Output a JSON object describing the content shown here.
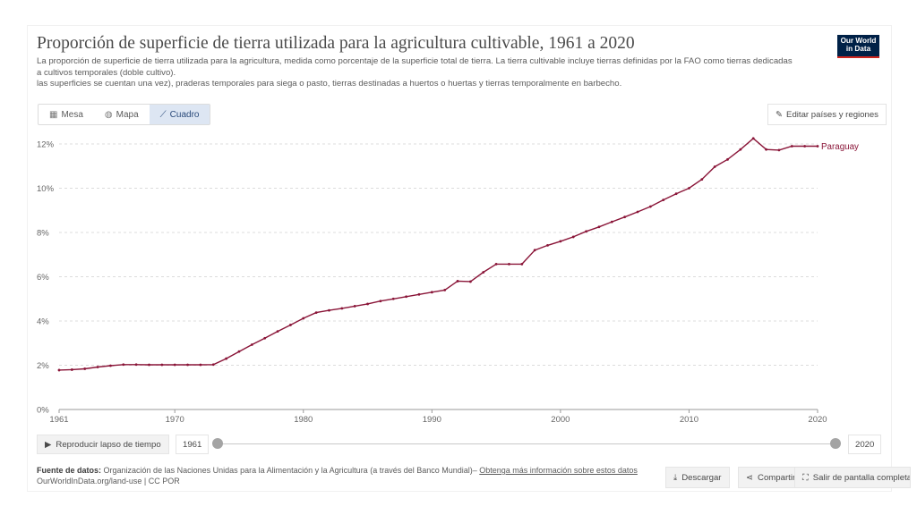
{
  "header": {
    "title": "Proporción de superficie de tierra utilizada para la agricultura cultivable, 1961 a 2020",
    "subtitle_line1": "La proporción de superficie de tierra utilizada para la agricultura, medida como porcentaje de la superficie total de tierra. La tierra cultivable incluye tierras definidas por la FAO como tierras dedicadas",
    "subtitle_line2": "a cultivos temporales (doble cultivo).",
    "subtitle_line3": "las superficies se cuentan una vez), praderas temporales para siega o pasto, tierras destinadas a huertos o huertas y tierras temporalmente en barbecho.",
    "logo_line1": "Our World",
    "logo_line2": "in Data"
  },
  "tabs": [
    {
      "label": "Mesa",
      "icon": "table-icon"
    },
    {
      "label": "Mapa",
      "icon": "globe-icon"
    },
    {
      "label": "Cuadro",
      "icon": "chart-icon",
      "active": true
    }
  ],
  "edit_button": "Editar países y regiones",
  "timeline": {
    "play_label": "Reproducir lapso de tiempo",
    "start_year": "1961",
    "end_year": "2020"
  },
  "footer": {
    "source_label": "Fuente de datos:",
    "source_text": "Organización de las Naciones Unidas para la Alimentación y la Agricultura (a través del Banco Mundial)",
    "source_link": "Obtenga más información sobre estos datos",
    "line2": "OurWorldInData.org/land-use | CC POR",
    "download_label": "Descargar",
    "share_label": "Compartir",
    "fullscreen_label": "Salir de pantalla completa"
  },
  "colors": {
    "series": "#8a1538",
    "accent": "#002147"
  },
  "chart_data": {
    "type": "line",
    "title": "Proporción de superficie de tierra utilizada para la agricultura cultivable, 1961 a 2020",
    "xlabel": "",
    "ylabel": "",
    "xlim": [
      1961,
      2020
    ],
    "ylim": [
      0,
      12
    ],
    "x_ticks": [
      1961,
      1970,
      1980,
      1990,
      2000,
      2010,
      2020
    ],
    "y_ticks": [
      0,
      2,
      4,
      6,
      8,
      10,
      12
    ],
    "y_tick_labels": [
      "0%",
      "2%",
      "4%",
      "6%",
      "8%",
      "10%",
      "12%"
    ],
    "grid": "horizontal dashed",
    "series": [
      {
        "name": "Paraguay",
        "x": [
          1961,
          1962,
          1963,
          1964,
          1965,
          1966,
          1967,
          1968,
          1969,
          1970,
          1971,
          1972,
          1973,
          1974,
          1975,
          1976,
          1977,
          1978,
          1979,
          1980,
          1981,
          1982,
          1983,
          1984,
          1985,
          1986,
          1987,
          1988,
          1989,
          1990,
          1991,
          1992,
          1993,
          1994,
          1995,
          1996,
          1997,
          1998,
          1999,
          2000,
          2001,
          2002,
          2003,
          2004,
          2005,
          2006,
          2007,
          2008,
          2009,
          2010,
          2011,
          2012,
          2013,
          2014,
          2015,
          2016,
          2017,
          2018,
          2019,
          2020
        ],
        "values": [
          1.78,
          1.8,
          1.84,
          1.92,
          1.98,
          2.03,
          2.03,
          2.02,
          2.02,
          2.02,
          2.02,
          2.02,
          2.03,
          2.3,
          2.62,
          2.93,
          3.22,
          3.53,
          3.82,
          4.12,
          4.38,
          4.48,
          4.57,
          4.67,
          4.77,
          4.9,
          5.0,
          5.1,
          5.2,
          5.3,
          5.4,
          5.8,
          5.78,
          6.2,
          6.57,
          6.57,
          6.57,
          7.2,
          7.42,
          7.6,
          7.8,
          8.05,
          8.25,
          8.48,
          8.7,
          8.93,
          9.17,
          9.47,
          9.75,
          10.0,
          10.4,
          10.97,
          11.3,
          11.75,
          12.25,
          11.75,
          11.72,
          11.9,
          11.9,
          11.9
        ]
      }
    ]
  }
}
